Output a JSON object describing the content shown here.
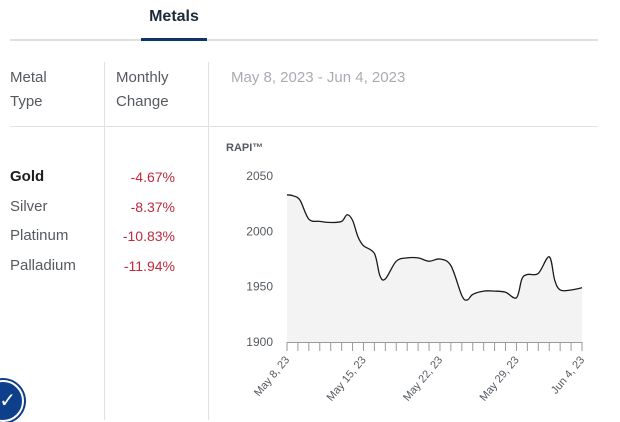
{
  "tabs": [
    {
      "label": "Metals",
      "active": true
    }
  ],
  "table": {
    "headers": {
      "metal_type": "Metal\nType",
      "monthly_change": "Monthly\nChange",
      "date_range": "May 8, 2023 - Jun 4, 2023"
    },
    "rows": [
      {
        "name": "Gold",
        "change": "-4.67%"
      },
      {
        "name": "Silver",
        "change": "-8.37%"
      },
      {
        "name": "Platinum",
        "change": "-10.83%"
      },
      {
        "name": "Palladium",
        "change": "-11.94%"
      }
    ]
  },
  "badge_icon": "accessibility-icon",
  "colors": {
    "negative": "#c0293d",
    "accent": "#0e3566",
    "line": "#1a1a1a",
    "fill": "#f3f3f3"
  },
  "chart_data": {
    "type": "area",
    "title": "RAPI™",
    "ylim": [
      1900,
      2050
    ],
    "yticks": [
      1900,
      1950,
      2000,
      2050
    ],
    "ytick_labels": [
      "1900",
      "1950",
      "2000",
      "2050"
    ],
    "xtick_labels": [
      "May 8, 23",
      "May 15, 23",
      "May 22, 23",
      "May 29, 23",
      "Jun 4, 23"
    ],
    "xtick_days": [
      0,
      7,
      14,
      21,
      27
    ],
    "day_count": 28,
    "series": [
      {
        "name": "RAPI",
        "x": [
          0,
          0.6,
          1.2,
          2,
          3,
          4,
          5,
          5.5,
          6,
          6.5,
          7,
          8,
          8.5,
          9,
          10,
          11,
          12,
          13,
          14,
          15,
          16,
          16.5,
          17,
          18,
          19,
          20,
          21,
          21.5,
          22,
          23,
          24,
          24.5,
          25,
          26,
          27
        ],
        "y": [
          2033,
          2032,
          2028,
          2011,
          2009,
          2008,
          2009,
          2015,
          2010,
          1995,
          1987,
          1980,
          1960,
          1957,
          1973,
          1976,
          1976,
          1973,
          1975,
          1969,
          1942,
          1938,
          1943,
          1946,
          1946,
          1945,
          1940,
          1957,
          1961,
          1962,
          1977,
          1956,
          1947,
          1947,
          1949
        ]
      }
    ]
  }
}
